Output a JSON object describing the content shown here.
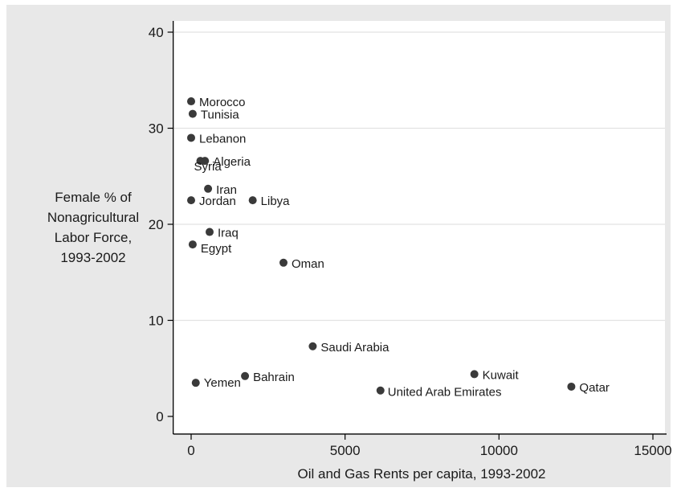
{
  "chart_data": {
    "type": "scatter",
    "title": "",
    "xlabel": "Oil and Gas Rents per capita, 1993-2002",
    "ylabel": [
      "Female % of",
      "Nonagricultural",
      "Labor Force,",
      "1993-2002"
    ],
    "xlim": [
      -400,
      15000
    ],
    "ylim": [
      -1,
      41
    ],
    "xticks": [
      0,
      5000,
      10000,
      15000
    ],
    "xtick_labels": [
      "0",
      "5000",
      "10000",
      "15000"
    ],
    "yticks": [
      0,
      10,
      20,
      30,
      40
    ],
    "ytick_labels": [
      "0",
      "10",
      "20",
      "30",
      "40"
    ],
    "grid": true,
    "marker_color": "#3a3a3a",
    "points": [
      {
        "label": "Morocco",
        "x": 0,
        "y": 32.8
      },
      {
        "label": "Tunisia",
        "x": 50,
        "y": 31.5
      },
      {
        "label": "Lebanon",
        "x": 0,
        "y": 29.0
      },
      {
        "label": "Algeria",
        "x": 450,
        "y": 26.6
      },
      {
        "label": "Syria",
        "x": 300,
        "y": 26.6
      },
      {
        "label": "Iran",
        "x": 550,
        "y": 23.7
      },
      {
        "label": "Jordan",
        "x": 0,
        "y": 22.5
      },
      {
        "label": "Libya",
        "x": 2000,
        "y": 22.5
      },
      {
        "label": "Iraq",
        "x": 600,
        "y": 19.2
      },
      {
        "label": "Egypt",
        "x": 50,
        "y": 17.9
      },
      {
        "label": "Oman",
        "x": 3000,
        "y": 16.0
      },
      {
        "label": "Saudi Arabia",
        "x": 3950,
        "y": 7.3
      },
      {
        "label": "Kuwait",
        "x": 9200,
        "y": 4.4
      },
      {
        "label": "Bahrain",
        "x": 1750,
        "y": 4.2
      },
      {
        "label": "Yemen",
        "x": 150,
        "y": 3.5
      },
      {
        "label": "Qatar",
        "x": 12350,
        "y": 3.1
      },
      {
        "label": "United Arab Emirates",
        "x": 6150,
        "y": 2.7
      }
    ]
  }
}
